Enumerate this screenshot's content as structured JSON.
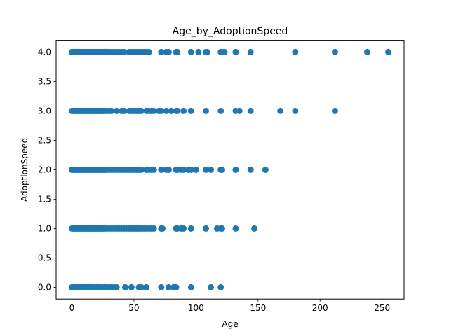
{
  "chart_data": {
    "type": "scatter",
    "title": "Age_by_AdoptionSpeed",
    "xlabel": "Age",
    "ylabel": "AdoptionSpeed",
    "xlim": [
      -12.7,
      267.7
    ],
    "ylim": [
      -0.2,
      4.2
    ],
    "xticks": [
      0,
      50,
      100,
      150,
      200,
      250
    ],
    "yticks": [
      0.0,
      0.5,
      1.0,
      1.5,
      2.0,
      2.5,
      3.0,
      3.5,
      4.0
    ],
    "xtick_labels": [
      "0",
      "50",
      "100",
      "150",
      "200",
      "250"
    ],
    "ytick_labels": [
      "0.0",
      "0.5",
      "1.0",
      "1.5",
      "2.0",
      "2.5",
      "3.0",
      "3.5",
      "4.0"
    ],
    "grid": false,
    "marker_color": "#1f77b4",
    "series": [
      {
        "points": [
          [
            0,
            4
          ],
          [
            1,
            4
          ],
          [
            2,
            4
          ],
          [
            3,
            4
          ],
          [
            4,
            4
          ],
          [
            5,
            4
          ],
          [
            6,
            4
          ],
          [
            7,
            4
          ],
          [
            8,
            4
          ],
          [
            9,
            4
          ],
          [
            10,
            4
          ],
          [
            11,
            4
          ],
          [
            12,
            4
          ],
          [
            13,
            4
          ],
          [
            14,
            4
          ],
          [
            15,
            4
          ],
          [
            16,
            4
          ],
          [
            17,
            4
          ],
          [
            18,
            4
          ],
          [
            19,
            4
          ],
          [
            20,
            4
          ],
          [
            21,
            4
          ],
          [
            22,
            4
          ],
          [
            23,
            4
          ],
          [
            24,
            4
          ],
          [
            25,
            4
          ],
          [
            26,
            4
          ],
          [
            27,
            4
          ],
          [
            28,
            4
          ],
          [
            29,
            4
          ],
          [
            30,
            4
          ],
          [
            32,
            4
          ],
          [
            34,
            4
          ],
          [
            36,
            4
          ],
          [
            38,
            4
          ],
          [
            40,
            4
          ],
          [
            42,
            4
          ],
          [
            46,
            4
          ],
          [
            48,
            4
          ],
          [
            50,
            4
          ],
          [
            52,
            4
          ],
          [
            54,
            4
          ],
          [
            56,
            4
          ],
          [
            58,
            4
          ],
          [
            60,
            4
          ],
          [
            62,
            4
          ],
          [
            72,
            4
          ],
          [
            76,
            4
          ],
          [
            78,
            4
          ],
          [
            84,
            4
          ],
          [
            85,
            4
          ],
          [
            96,
            4
          ],
          [
            102,
            4
          ],
          [
            108,
            4
          ],
          [
            109,
            4
          ],
          [
            120,
            4
          ],
          [
            121,
            4
          ],
          [
            123,
            4
          ],
          [
            132,
            4
          ],
          [
            144,
            4
          ],
          [
            180,
            4
          ],
          [
            212,
            4
          ],
          [
            238,
            4
          ],
          [
            255,
            4
          ],
          [
            0,
            3
          ],
          [
            1,
            3
          ],
          [
            2,
            3
          ],
          [
            3,
            3
          ],
          [
            4,
            3
          ],
          [
            5,
            3
          ],
          [
            6,
            3
          ],
          [
            7,
            3
          ],
          [
            8,
            3
          ],
          [
            9,
            3
          ],
          [
            10,
            3
          ],
          [
            11,
            3
          ],
          [
            12,
            3
          ],
          [
            13,
            3
          ],
          [
            14,
            3
          ],
          [
            15,
            3
          ],
          [
            16,
            3
          ],
          [
            17,
            3
          ],
          [
            18,
            3
          ],
          [
            19,
            3
          ],
          [
            20,
            3
          ],
          [
            21,
            3
          ],
          [
            22,
            3
          ],
          [
            23,
            3
          ],
          [
            24,
            3
          ],
          [
            25,
            3
          ],
          [
            26,
            3
          ],
          [
            28,
            3
          ],
          [
            30,
            3
          ],
          [
            32,
            3
          ],
          [
            36,
            3
          ],
          [
            40,
            3
          ],
          [
            42,
            3
          ],
          [
            46,
            3
          ],
          [
            48,
            3
          ],
          [
            50,
            3
          ],
          [
            52,
            3
          ],
          [
            54,
            3
          ],
          [
            56,
            3
          ],
          [
            60,
            3
          ],
          [
            62,
            3
          ],
          [
            64,
            3
          ],
          [
            66,
            3
          ],
          [
            70,
            3
          ],
          [
            72,
            3
          ],
          [
            76,
            3
          ],
          [
            80,
            3
          ],
          [
            84,
            3
          ],
          [
            85,
            3
          ],
          [
            90,
            3
          ],
          [
            96,
            3
          ],
          [
            108,
            3
          ],
          [
            120,
            3
          ],
          [
            132,
            3
          ],
          [
            135,
            3
          ],
          [
            144,
            3
          ],
          [
            168,
            3
          ],
          [
            180,
            3
          ],
          [
            212,
            3
          ],
          [
            0,
            2
          ],
          [
            1,
            2
          ],
          [
            2,
            2
          ],
          [
            3,
            2
          ],
          [
            4,
            2
          ],
          [
            5,
            2
          ],
          [
            6,
            2
          ],
          [
            7,
            2
          ],
          [
            8,
            2
          ],
          [
            9,
            2
          ],
          [
            10,
            2
          ],
          [
            11,
            2
          ],
          [
            12,
            2
          ],
          [
            13,
            2
          ],
          [
            14,
            2
          ],
          [
            15,
            2
          ],
          [
            16,
            2
          ],
          [
            17,
            2
          ],
          [
            18,
            2
          ],
          [
            19,
            2
          ],
          [
            20,
            2
          ],
          [
            21,
            2
          ],
          [
            22,
            2
          ],
          [
            23,
            2
          ],
          [
            24,
            2
          ],
          [
            25,
            2
          ],
          [
            26,
            2
          ],
          [
            27,
            2
          ],
          [
            28,
            2
          ],
          [
            30,
            2
          ],
          [
            32,
            2
          ],
          [
            34,
            2
          ],
          [
            36,
            2
          ],
          [
            38,
            2
          ],
          [
            40,
            2
          ],
          [
            42,
            2
          ],
          [
            44,
            2
          ],
          [
            46,
            2
          ],
          [
            48,
            2
          ],
          [
            50,
            2
          ],
          [
            52,
            2
          ],
          [
            54,
            2
          ],
          [
            56,
            2
          ],
          [
            60,
            2
          ],
          [
            62,
            2
          ],
          [
            64,
            2
          ],
          [
            66,
            2
          ],
          [
            72,
            2
          ],
          [
            76,
            2
          ],
          [
            78,
            2
          ],
          [
            84,
            2
          ],
          [
            85,
            2
          ],
          [
            88,
            2
          ],
          [
            90,
            2
          ],
          [
            94,
            2
          ],
          [
            96,
            2
          ],
          [
            100,
            2
          ],
          [
            108,
            2
          ],
          [
            112,
            2
          ],
          [
            120,
            2
          ],
          [
            121,
            2
          ],
          [
            132,
            2
          ],
          [
            144,
            2
          ],
          [
            156,
            2
          ],
          [
            0,
            1
          ],
          [
            1,
            1
          ],
          [
            2,
            1
          ],
          [
            3,
            1
          ],
          [
            4,
            1
          ],
          [
            5,
            1
          ],
          [
            6,
            1
          ],
          [
            7,
            1
          ],
          [
            8,
            1
          ],
          [
            9,
            1
          ],
          [
            10,
            1
          ],
          [
            11,
            1
          ],
          [
            12,
            1
          ],
          [
            13,
            1
          ],
          [
            14,
            1
          ],
          [
            15,
            1
          ],
          [
            16,
            1
          ],
          [
            17,
            1
          ],
          [
            18,
            1
          ],
          [
            19,
            1
          ],
          [
            20,
            1
          ],
          [
            21,
            1
          ],
          [
            22,
            1
          ],
          [
            23,
            1
          ],
          [
            24,
            1
          ],
          [
            25,
            1
          ],
          [
            26,
            1
          ],
          [
            28,
            1
          ],
          [
            30,
            1
          ],
          [
            32,
            1
          ],
          [
            34,
            1
          ],
          [
            36,
            1
          ],
          [
            38,
            1
          ],
          [
            40,
            1
          ],
          [
            42,
            1
          ],
          [
            44,
            1
          ],
          [
            46,
            1
          ],
          [
            48,
            1
          ],
          [
            50,
            1
          ],
          [
            52,
            1
          ],
          [
            54,
            1
          ],
          [
            56,
            1
          ],
          [
            58,
            1
          ],
          [
            60,
            1
          ],
          [
            62,
            1
          ],
          [
            64,
            1
          ],
          [
            66,
            1
          ],
          [
            72,
            1
          ],
          [
            73,
            1
          ],
          [
            84,
            1
          ],
          [
            85,
            1
          ],
          [
            88,
            1
          ],
          [
            90,
            1
          ],
          [
            96,
            1
          ],
          [
            108,
            1
          ],
          [
            117,
            1
          ],
          [
            120,
            1
          ],
          [
            121,
            1
          ],
          [
            132,
            1
          ],
          [
            147,
            1
          ],
          [
            0,
            0
          ],
          [
            1,
            0
          ],
          [
            2,
            0
          ],
          [
            3,
            0
          ],
          [
            4,
            0
          ],
          [
            5,
            0
          ],
          [
            6,
            0
          ],
          [
            7,
            0
          ],
          [
            8,
            0
          ],
          [
            9,
            0
          ],
          [
            10,
            0
          ],
          [
            11,
            0
          ],
          [
            12,
            0
          ],
          [
            13,
            0
          ],
          [
            14,
            0
          ],
          [
            15,
            0
          ],
          [
            16,
            0
          ],
          [
            18,
            0
          ],
          [
            20,
            0
          ],
          [
            22,
            0
          ],
          [
            24,
            0
          ],
          [
            26,
            0
          ],
          [
            28,
            0
          ],
          [
            30,
            0
          ],
          [
            32,
            0
          ],
          [
            34,
            0
          ],
          [
            36,
            0
          ],
          [
            43,
            0
          ],
          [
            48,
            0
          ],
          [
            54,
            0
          ],
          [
            56,
            0
          ],
          [
            60,
            0
          ],
          [
            72,
            0
          ],
          [
            78,
            0
          ],
          [
            82,
            0
          ],
          [
            84,
            0
          ],
          [
            96,
            0
          ],
          [
            112,
            0
          ],
          [
            120,
            0
          ]
        ]
      }
    ]
  }
}
